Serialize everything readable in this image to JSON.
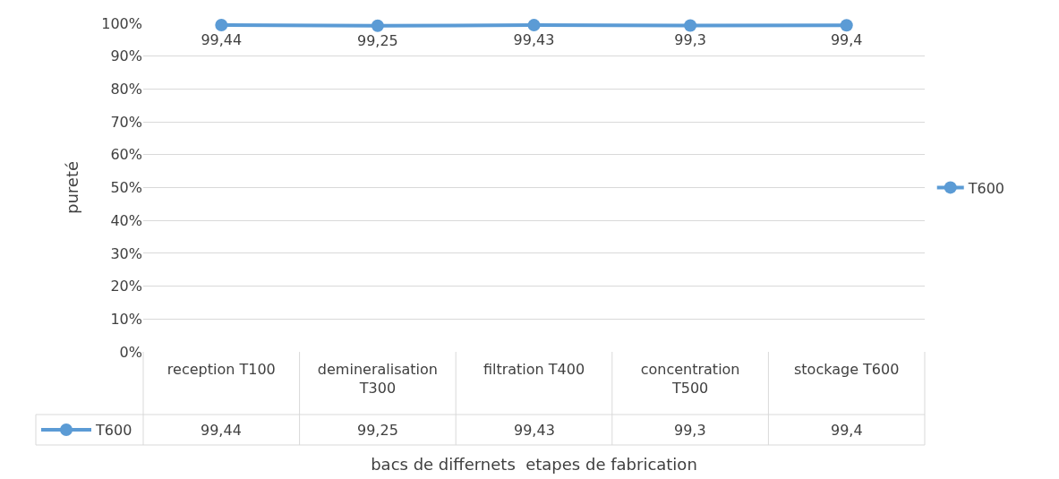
{
  "chart_data": {
    "type": "line",
    "xlabel": "bacs de differnets  etapes de fabrication",
    "ylabel": "pureté",
    "categories": [
      "reception T100",
      "demineralisation T300",
      "filtration T400",
      "concentration T500",
      "stockage T600"
    ],
    "series": [
      {
        "name": "T600",
        "color": "#5b9bd5",
        "values": [
          99.44,
          99.25,
          99.43,
          99.3,
          99.4
        ],
        "value_labels": [
          "99,44",
          "99,25",
          "99,43",
          "99,3",
          "99,4"
        ]
      }
    ],
    "ylim": [
      0,
      100
    ],
    "yticks": [
      {
        "value": 0,
        "label": "0%"
      },
      {
        "value": 10,
        "label": "10%"
      },
      {
        "value": 20,
        "label": "20%"
      },
      {
        "value": 30,
        "label": "30%"
      },
      {
        "value": 40,
        "label": "40%"
      },
      {
        "value": 50,
        "label": "50%"
      },
      {
        "value": 60,
        "label": "60%"
      },
      {
        "value": 70,
        "label": "70%"
      },
      {
        "value": 80,
        "label": "80%"
      },
      {
        "value": 90,
        "label": "90%"
      },
      {
        "value": 100,
        "label": "100%"
      }
    ],
    "grid": "y",
    "legend": "right",
    "marker": "circle",
    "line_style": "solid"
  }
}
